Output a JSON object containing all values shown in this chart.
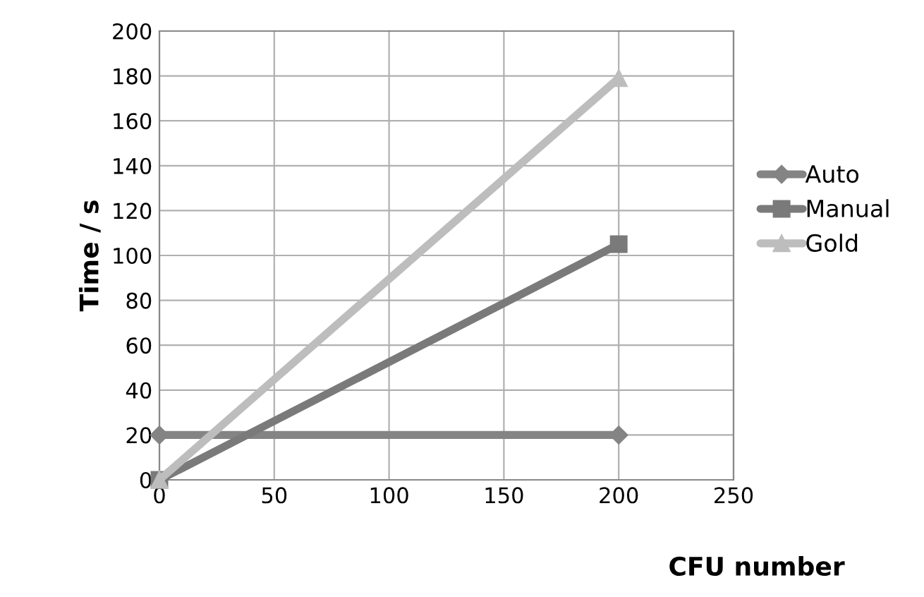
{
  "chart_data": {
    "type": "line",
    "xlabel": "CFU number",
    "ylabel": "Time / s",
    "x": [
      0,
      200
    ],
    "series": [
      {
        "name": "Auto",
        "color": "#848484",
        "marker": "diamond",
        "values": [
          20,
          20
        ]
      },
      {
        "name": "Manual",
        "color": "#7a7a7a",
        "marker": "square",
        "values": [
          0,
          105
        ]
      },
      {
        "name": "Gold",
        "color": "#bdbdbd",
        "marker": "triangle",
        "values": [
          0,
          179
        ]
      }
    ],
    "xlim": [
      0,
      250
    ],
    "xticks": [
      0,
      50,
      100,
      150,
      200,
      250
    ],
    "ylim": [
      0,
      200
    ],
    "yticks": [
      0,
      20,
      40,
      60,
      80,
      100,
      120,
      140,
      160,
      180,
      200
    ],
    "grid": true,
    "legend": "right",
    "line_style": "solid"
  }
}
